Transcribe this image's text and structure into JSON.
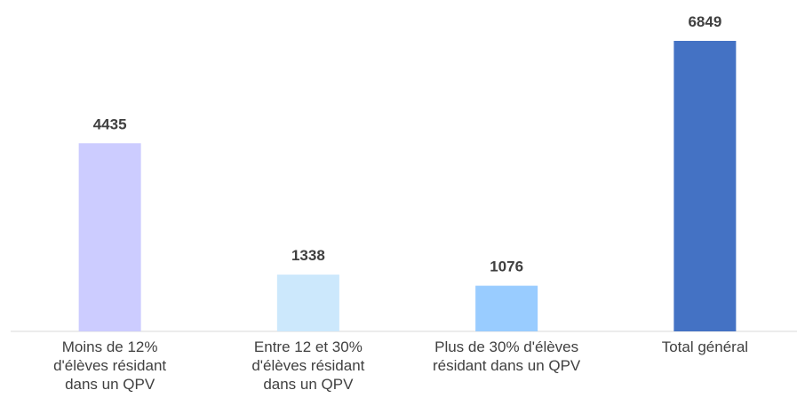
{
  "chart_data": {
    "type": "bar",
    "categories": [
      "Moins de 12% d'élèves résidant dans un QPV",
      "Entre 12 et 30% d'élèves résidant dans un QPV",
      "Plus de 30% d'élèves résidant dans un QPV",
      "Total général"
    ],
    "values": [
      4435,
      1338,
      1076,
      6849
    ],
    "colors": [
      "#ccccff",
      "#cce8fc",
      "#99ccff",
      "#4472c4"
    ]
  }
}
